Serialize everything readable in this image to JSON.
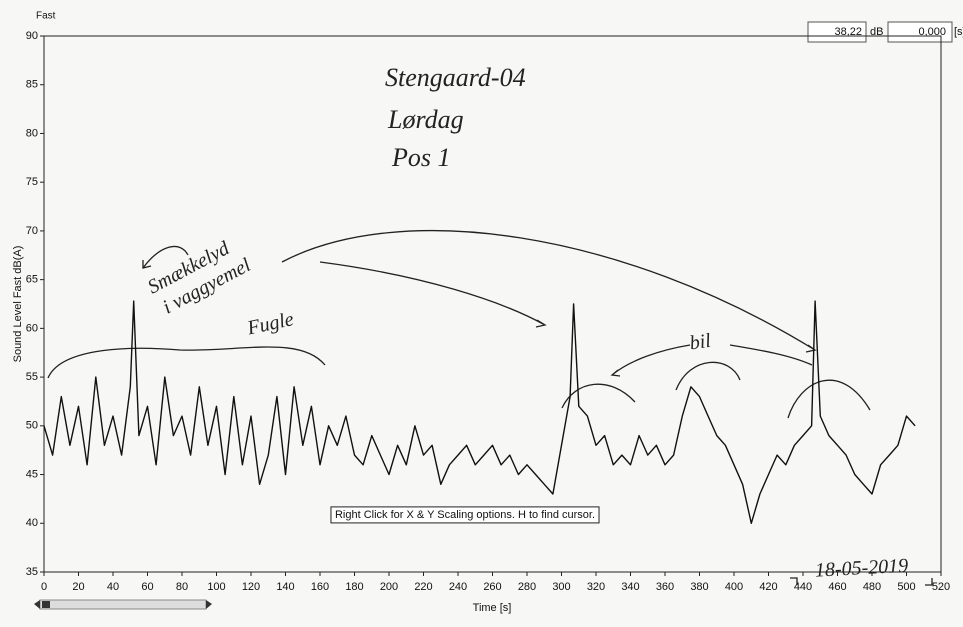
{
  "header": {
    "mode": "Fast",
    "level": "38,22",
    "level_unit": "dB",
    "time": "0,000",
    "time_unit": "[s]"
  },
  "chart_data": {
    "type": "line",
    "xlabel": "Time [s]",
    "ylabel": "Sound Level Fast dB(A)",
    "xlim": [
      0,
      520
    ],
    "ylim": [
      35,
      90
    ],
    "xticks": [
      0,
      20,
      40,
      60,
      80,
      100,
      120,
      140,
      160,
      180,
      200,
      220,
      240,
      260,
      280,
      300,
      320,
      340,
      360,
      380,
      400,
      420,
      440,
      460,
      480,
      500,
      520
    ],
    "yticks": [
      35,
      40,
      45,
      50,
      55,
      60,
      65,
      70,
      75,
      80,
      85,
      90
    ],
    "color": "#111111",
    "x": [
      0,
      5,
      10,
      15,
      20,
      25,
      30,
      35,
      40,
      45,
      50,
      52,
      55,
      60,
      65,
      70,
      75,
      80,
      85,
      90,
      95,
      100,
      105,
      110,
      115,
      120,
      125,
      130,
      135,
      140,
      145,
      150,
      155,
      160,
      165,
      170,
      175,
      180,
      185,
      190,
      195,
      200,
      205,
      210,
      215,
      220,
      225,
      230,
      235,
      240,
      245,
      250,
      255,
      260,
      265,
      270,
      275,
      280,
      285,
      290,
      295,
      300,
      305,
      307,
      310,
      315,
      320,
      325,
      330,
      335,
      340,
      345,
      350,
      355,
      360,
      365,
      370,
      375,
      380,
      385,
      390,
      395,
      400,
      405,
      410,
      415,
      420,
      425,
      430,
      435,
      440,
      445,
      447,
      450,
      455,
      460,
      465,
      470,
      475,
      480,
      485,
      490,
      495,
      500,
      505
    ],
    "values": [
      50,
      47,
      53,
      48,
      52,
      46,
      55,
      48,
      51,
      47,
      54,
      62.8,
      49,
      52,
      46,
      55,
      49,
      51,
      47,
      54,
      48,
      52,
      45,
      53,
      46,
      51,
      44,
      47,
      53,
      45,
      54,
      48,
      52,
      46,
      50,
      48,
      51,
      47,
      46,
      49,
      47,
      45,
      48,
      46,
      50,
      47,
      48,
      44,
      46,
      47,
      48,
      46,
      47,
      48,
      46,
      47,
      45,
      46,
      45,
      44,
      43,
      48,
      53,
      62.5,
      52,
      51,
      48,
      49,
      46,
      47,
      46,
      49,
      47,
      48,
      46,
      47,
      51,
      54,
      53,
      51,
      49,
      48,
      46,
      44,
      40,
      43,
      45,
      47,
      46,
      48,
      49,
      50,
      62.8,
      51,
      49,
      48,
      47,
      45,
      44,
      43,
      46,
      47,
      48,
      51,
      50
    ],
    "tooltip": "Right Click for X & Y Scaling options. H to find cursor.",
    "annotations": [
      "Stengaard-04",
      "Lørdag",
      "Pos 1",
      "Smækkelyd",
      "i vaggyemel",
      "Fugle",
      "bil",
      "18-05-2019"
    ]
  }
}
